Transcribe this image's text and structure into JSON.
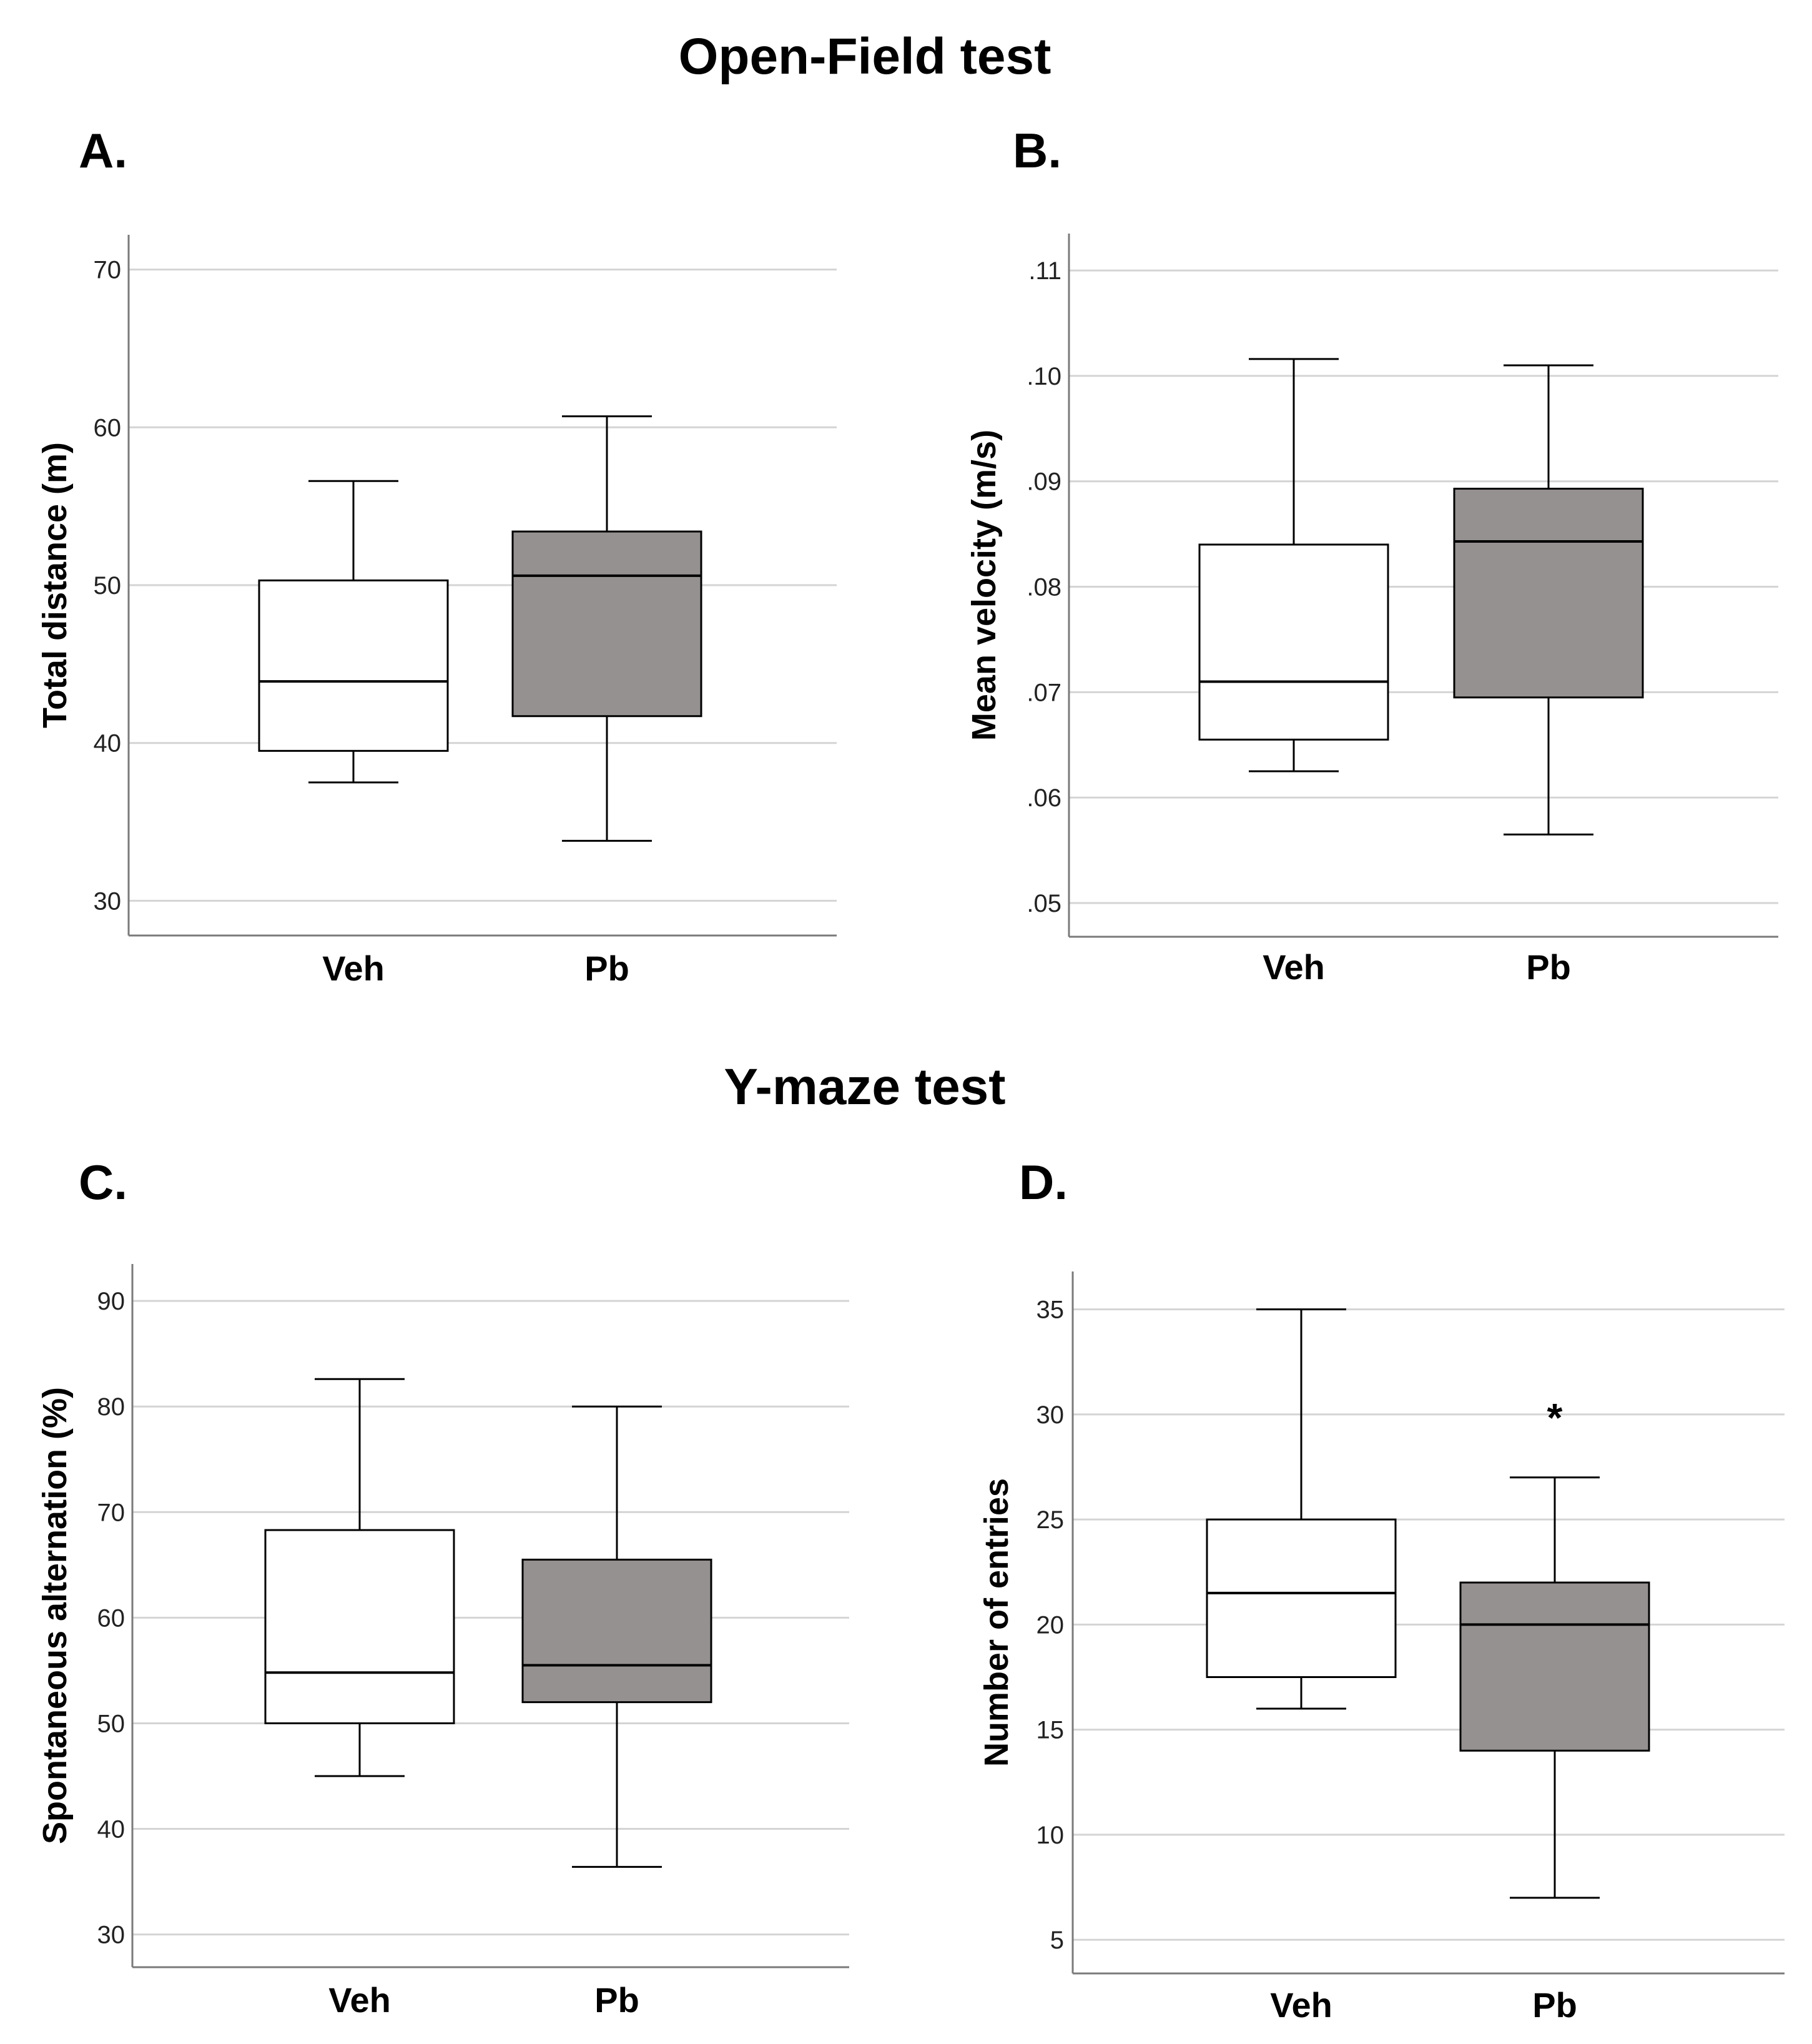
{
  "sections": {
    "open_field_title": "Open-Field test",
    "y_maze_title": "Y-maze test"
  },
  "colors": {
    "veh_fill": "#ffffff",
    "pb_fill": "#959190",
    "grid": "#d4d4d4",
    "axis": "#7a7a7a",
    "stroke": "#000000"
  },
  "chart_data": [
    {
      "id": "A",
      "panel_label": "A.",
      "type": "box",
      "ylabel": "Total distance (m)",
      "categories": [
        "Veh",
        "Pb"
      ],
      "ylim": [
        27.8,
        72.2
      ],
      "yticks": [
        30,
        40,
        50,
        60,
        70
      ],
      "ytick_labels": [
        "30",
        "40",
        "50",
        "60",
        "70"
      ],
      "grid": true,
      "boxes": [
        {
          "group": "Veh",
          "min": 37.5,
          "q1": 39.5,
          "median": 43.9,
          "q3": 50.3,
          "max": 56.6
        },
        {
          "group": "Pb",
          "min": 33.8,
          "q1": 41.7,
          "median": 50.6,
          "q3": 53.4,
          "max": 60.7
        }
      ],
      "annotations": []
    },
    {
      "id": "B",
      "panel_label": "B.",
      "type": "box",
      "ylabel": "Mean velocity (m/s)",
      "categories": [
        "Veh",
        "Pb"
      ],
      "ylim": [
        0.0468,
        0.1135
      ],
      "yticks": [
        0.05,
        0.06,
        0.07,
        0.08,
        0.09,
        0.1,
        0.11
      ],
      "ytick_labels": [
        ".05",
        ".06",
        ".07",
        ".08",
        ".09",
        ".10",
        ".11"
      ],
      "grid": true,
      "boxes": [
        {
          "group": "Veh",
          "min": 0.0625,
          "q1": 0.0655,
          "median": 0.071,
          "q3": 0.084,
          "max": 0.1016
        },
        {
          "group": "Pb",
          "min": 0.0565,
          "q1": 0.0695,
          "median": 0.0843,
          "q3": 0.0893,
          "max": 0.101
        }
      ],
      "annotations": []
    },
    {
      "id": "C",
      "panel_label": "C.",
      "type": "box",
      "ylabel": "Spontaneous alternation (%)",
      "categories": [
        "Veh",
        "Pb"
      ],
      "ylim": [
        26.9,
        93.5
      ],
      "yticks": [
        30,
        40,
        50,
        60,
        70,
        80,
        90
      ],
      "ytick_labels": [
        "30",
        "40",
        "50",
        "60",
        "70",
        "80",
        "90"
      ],
      "grid": true,
      "boxes": [
        {
          "group": "Veh",
          "min": 45.0,
          "q1": 50.0,
          "median": 54.8,
          "q3": 68.3,
          "max": 82.6
        },
        {
          "group": "Pb",
          "min": 36.4,
          "q1": 52.0,
          "median": 55.5,
          "q3": 65.5,
          "max": 80.0
        }
      ],
      "annotations": []
    },
    {
      "id": "D",
      "panel_label": "D.",
      "type": "box",
      "ylabel": "Number of entries",
      "categories": [
        "Veh",
        "Pb"
      ],
      "ylim": [
        3.4,
        36.8
      ],
      "yticks": [
        5,
        10,
        15,
        20,
        25,
        30,
        35
      ],
      "ytick_labels": [
        "5",
        "10",
        "15",
        "20",
        "25",
        "30",
        "35"
      ],
      "grid": true,
      "boxes": [
        {
          "group": "Veh",
          "min": 16.0,
          "q1": 17.5,
          "median": 21.5,
          "q3": 25.0,
          "max": 35.0
        },
        {
          "group": "Pb",
          "min": 7.0,
          "q1": 14.0,
          "median": 20.0,
          "q3": 22.0,
          "max": 27.0
        }
      ],
      "annotations": [
        {
          "group": "Pb",
          "y": 30.5,
          "text": "*"
        }
      ]
    }
  ]
}
